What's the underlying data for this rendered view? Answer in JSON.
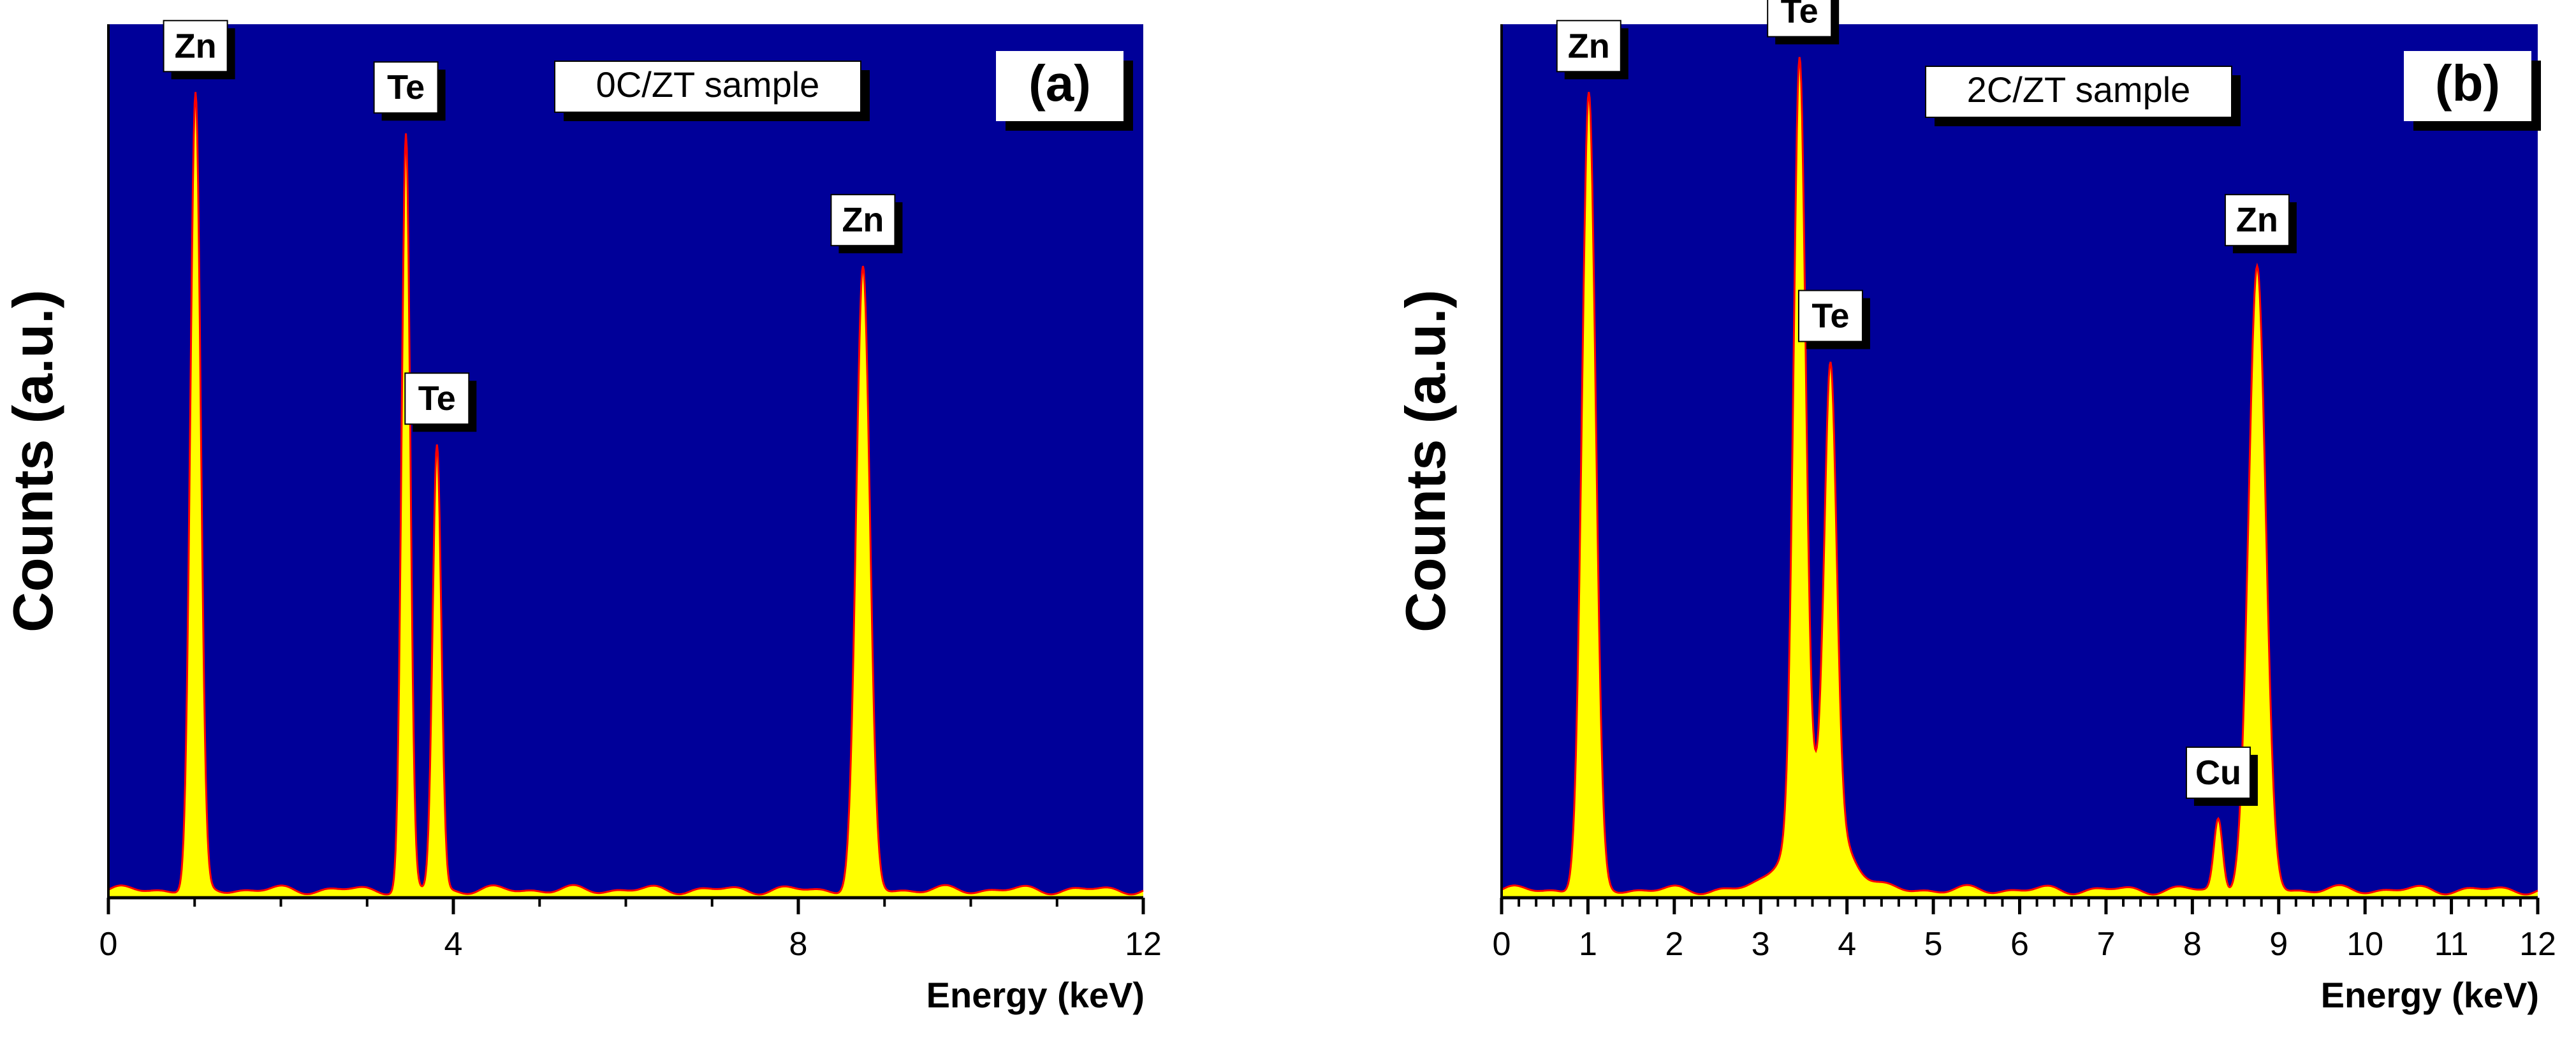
{
  "chart_data": [
    {
      "type": "area",
      "panel_tag": "(a)",
      "sample_label": "0C/ZT sample",
      "xlabel": "Energy (keV)",
      "ylabel": "Counts (a.u.)",
      "xlim": [
        0,
        12
      ],
      "ylim": [
        0,
        110
      ],
      "major_ticks": [
        0,
        4,
        8,
        12
      ],
      "minor_step": 1,
      "baseline": 1.0,
      "peaks": [
        {
          "element": "Zn",
          "energy": 1.01,
          "height": 100,
          "width": 0.06
        },
        {
          "element": "Te",
          "energy": 3.45,
          "height": 95,
          "width": 0.05
        },
        {
          "element": "Te",
          "energy": 3.81,
          "height": 56,
          "width": 0.05
        },
        {
          "element": "Zn",
          "energy": 8.75,
          "height": 78,
          "width": 0.08
        }
      ],
      "labels": [
        {
          "text": "Zn",
          "energy": 1.01
        },
        {
          "text": "Te",
          "energy": 3.45
        },
        {
          "text": "Te",
          "energy": 3.81
        },
        {
          "text": "Zn",
          "energy": 8.75
        }
      ],
      "colors": {
        "background": "#000099",
        "fill": "#ffff00",
        "line": "#ff0000"
      }
    },
    {
      "type": "area",
      "panel_tag": "(b)",
      "sample_label": "2C/ZT sample",
      "xlabel": "Energy (keV)",
      "ylabel": "Counts (a.u.)",
      "xlim": [
        0,
        12
      ],
      "ylim": [
        0,
        110
      ],
      "major_ticks": [
        0,
        1,
        2,
        3,
        4,
        5,
        6,
        7,
        8,
        9,
        10,
        11,
        12
      ],
      "minor_step": 0.2,
      "baseline": 1.0,
      "peaks": [
        {
          "element": "Zn",
          "energy": 1.01,
          "height": 100,
          "width": 0.08
        },
        {
          "element": "Te",
          "energy": 3.45,
          "height": 95,
          "width": 0.07
        },
        {
          "element": "Te",
          "energy": 3.81,
          "height": 56,
          "width": 0.07
        },
        {
          "element": "",
          "energy": 3.65,
          "height": 12,
          "width": 0.3
        },
        {
          "element": "Cu",
          "energy": 8.3,
          "height": 9,
          "width": 0.05
        },
        {
          "element": "Zn",
          "energy": 8.75,
          "height": 78,
          "width": 0.1
        }
      ],
      "labels": [
        {
          "text": "Zn",
          "energy": 1.01
        },
        {
          "text": "Te",
          "energy": 3.45
        },
        {
          "text": "Te",
          "energy": 3.81
        },
        {
          "text": "Cu",
          "energy": 8.3
        },
        {
          "text": "Zn",
          "energy": 8.75
        }
      ],
      "colors": {
        "background": "#000099",
        "fill": "#ffff00",
        "line": "#ff0000"
      }
    }
  ]
}
